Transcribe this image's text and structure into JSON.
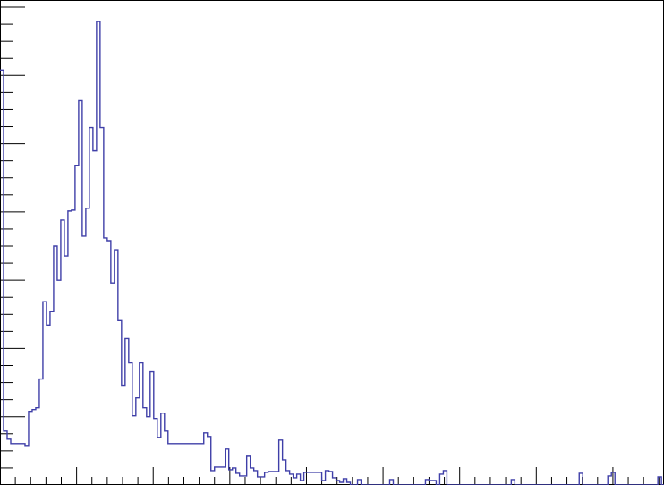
{
  "chart_data": {
    "type": "histogram",
    "title": "",
    "xlabel": "",
    "ylabel": "",
    "xlim": [
      0,
      260
    ],
    "ylim": [
      0,
      540
    ],
    "grid": false,
    "line_color": "#3f3fa8",
    "frame_color": "#000000",
    "x_major_ticks": [
      0,
      30,
      60,
      90,
      120,
      150,
      180,
      210,
      240
    ],
    "x_minor_step": 6,
    "y_major_ticks": [
      0,
      76,
      152,
      228,
      304,
      380,
      456,
      532
    ],
    "y_minor_step": 19,
    "bins": {
      "edges_start": 0,
      "bin_width": 1.4,
      "counts": [
        462,
        60,
        51,
        46,
        46,
        46,
        46,
        44,
        82,
        84,
        86,
        118,
        204,
        178,
        193,
        266,
        228,
        295,
        255,
        305,
        306,
        356,
        428,
        277,
        308,
        398,
        372,
        516,
        398,
        275,
        272,
        225,
        262,
        183,
        111,
        163,
        136,
        77,
        97,
        136,
        86,
        76,
        126,
        74,
        53,
        80,
        60,
        46,
        46,
        46,
        46,
        46,
        46,
        46,
        46,
        46,
        46,
        58,
        54,
        16,
        20,
        20,
        20,
        40,
        17,
        19,
        13,
        10,
        10,
        32,
        19,
        16,
        9,
        9,
        14,
        15,
        15,
        15,
        50,
        28,
        16,
        12,
        8,
        12,
        5,
        14,
        14,
        14,
        14,
        14,
        5,
        16,
        15,
        8,
        5,
        3,
        7,
        3,
        0,
        0,
        6,
        0,
        0,
        0,
        0,
        0,
        0,
        0,
        0,
        6,
        0,
        0,
        0,
        0,
        0,
        0,
        0,
        0,
        0,
        6,
        5,
        5,
        0,
        12,
        16,
        0,
        0,
        0,
        0,
        0,
        0,
        0,
        0,
        0,
        0,
        0,
        0,
        0,
        0,
        0,
        0,
        0,
        0,
        6,
        0,
        0,
        0,
        0,
        0,
        0,
        0,
        0,
        0,
        0,
        0,
        0,
        0,
        0,
        0,
        0,
        0,
        0,
        13,
        0,
        0,
        0,
        0,
        0,
        0,
        0,
        10,
        14,
        0,
        0,
        0,
        0,
        0,
        0,
        0,
        0,
        0,
        0,
        0,
        0,
        9,
        0,
        0,
        0,
        0,
        0,
        0,
        0,
        0,
        0,
        0,
        0,
        0,
        0,
        0,
        0,
        0,
        0,
        0,
        0,
        0,
        0,
        0,
        0,
        0,
        0,
        0,
        0,
        0,
        0,
        0,
        0,
        0,
        0,
        0,
        0,
        0,
        0,
        0,
        0,
        0,
        0,
        0,
        0,
        0,
        0,
        0,
        0,
        0,
        0,
        0,
        0,
        0,
        0,
        0,
        0,
        0,
        0,
        8,
        0,
        0,
        0,
        0,
        4,
        0,
        0,
        0,
        0,
        0,
        0,
        0,
        0,
        0,
        0,
        0,
        0,
        0,
        0,
        0,
        0,
        0,
        0,
        0,
        0,
        0,
        0,
        0,
        0,
        0,
        0,
        0,
        0,
        0,
        0,
        0,
        0,
        0,
        0,
        0,
        0,
        0,
        0,
        0,
        0,
        0,
        0,
        0,
        0,
        0,
        0,
        0,
        0,
        0,
        0,
        0,
        0,
        0,
        0,
        0,
        0,
        0,
        0,
        0,
        0,
        0,
        0,
        0,
        0,
        0,
        0,
        0,
        0,
        0,
        0,
        0,
        0,
        0,
        0,
        0,
        0,
        0,
        0,
        0,
        0,
        0,
        0,
        0,
        0,
        0,
        0,
        0,
        0,
        0,
        0,
        0,
        0,
        0,
        0,
        0,
        0,
        0,
        0,
        0,
        0,
        0,
        0,
        0,
        0,
        0,
        0,
        0,
        0,
        6
      ]
    }
  }
}
